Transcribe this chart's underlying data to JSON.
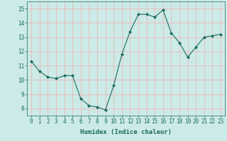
{
  "x": [
    0,
    1,
    2,
    3,
    4,
    5,
    6,
    7,
    8,
    9,
    10,
    11,
    12,
    13,
    14,
    15,
    16,
    17,
    18,
    19,
    20,
    21,
    22,
    23
  ],
  "y": [
    11.3,
    10.6,
    10.2,
    10.1,
    10.3,
    10.3,
    8.7,
    8.2,
    8.1,
    7.9,
    9.6,
    11.8,
    13.4,
    14.6,
    14.6,
    14.4,
    14.9,
    13.3,
    12.6,
    11.6,
    12.3,
    13.0,
    13.1,
    13.2
  ],
  "line_color": "#1a6b5e",
  "marker": "D",
  "marker_size": 2,
  "bg_color": "#cceae7",
  "grid_color": "#f0b0b0",
  "xlabel": "Humidex (Indice chaleur)",
  "xlabel_color": "#1a6b5e",
  "tick_color": "#1a6b5e",
  "ylim": [
    7.5,
    15.5
  ],
  "xlim": [
    -0.5,
    23.5
  ],
  "yticks": [
    8,
    9,
    10,
    11,
    12,
    13,
    14,
    15
  ],
  "xticks": [
    0,
    1,
    2,
    3,
    4,
    5,
    6,
    7,
    8,
    9,
    10,
    11,
    12,
    13,
    14,
    15,
    16,
    17,
    18,
    19,
    20,
    21,
    22,
    23
  ],
  "tick_fontsize": 5.5,
  "xlabel_fontsize": 6.5
}
